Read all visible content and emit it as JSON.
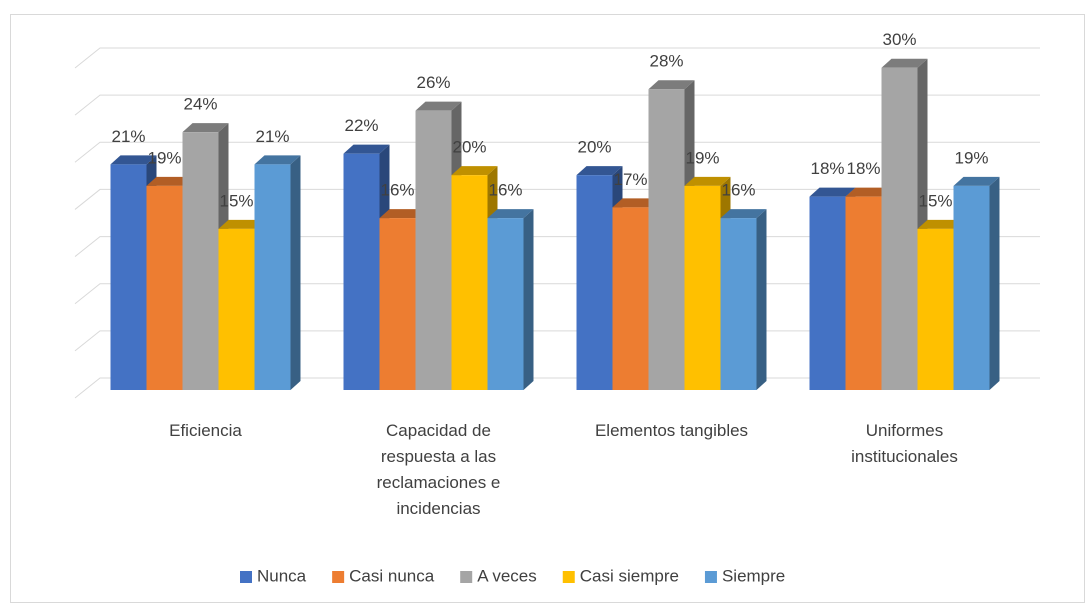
{
  "chart_data": {
    "type": "bar3d",
    "categories": [
      "Eficiencia",
      "Capacidad de respuesta a las reclamaciones e incidencias",
      "Elementos tangibles",
      "Uniformes institucionales"
    ],
    "series": [
      {
        "name": "Nunca",
        "color": "#4472c4",
        "values": [
          21,
          22,
          20,
          18
        ],
        "value_labels": [
          "21%",
          "22%",
          "20%",
          "18%"
        ]
      },
      {
        "name": "Casi nunca",
        "color": "#ed7d31",
        "values": [
          19,
          16,
          17,
          18
        ],
        "value_labels": [
          "19%",
          "16%",
          "17%",
          "18%"
        ]
      },
      {
        "name": "A veces",
        "color": "#a5a5a5",
        "values": [
          24,
          26,
          28,
          30
        ],
        "value_labels": [
          "24%",
          "26%",
          "28%",
          "30%"
        ]
      },
      {
        "name": "Casi siempre",
        "color": "#ffc000",
        "values": [
          15,
          20,
          19,
          15
        ],
        "value_labels": [
          "15%",
          "20%",
          "19%",
          "15%"
        ]
      },
      {
        "name": "Siempre",
        "color": "#5b9bd5",
        "values": [
          21,
          16,
          16,
          19
        ],
        "value_labels": [
          "21%",
          "16%",
          "16%",
          "19%"
        ]
      }
    ],
    "ylim": [
      0,
      35
    ],
    "yticks": [
      0,
      5,
      10,
      15,
      20,
      25,
      30,
      35
    ],
    "grid": true,
    "legend": "bottom"
  }
}
